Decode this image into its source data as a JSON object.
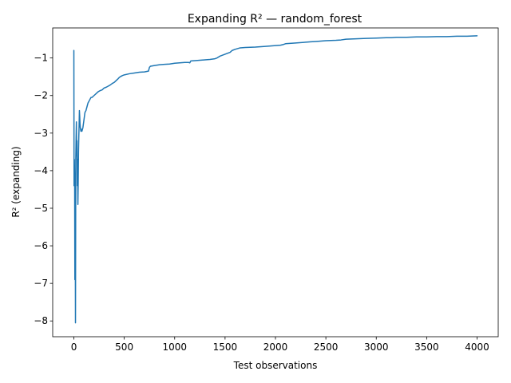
{
  "chart_data": {
    "type": "line",
    "title": "Expanding R² — random_forest",
    "xlabel": "Test observations",
    "ylabel": "R² (expanding)",
    "xlim": [
      -210,
      4210
    ],
    "ylim": [
      -8.42,
      -0.2
    ],
    "xticks": [
      0,
      500,
      1000,
      1500,
      2000,
      2500,
      3000,
      3500,
      4000
    ],
    "xtick_labels": [
      "0",
      "500",
      "1000",
      "1500",
      "2000",
      "2500",
      "3000",
      "3500",
      "4000"
    ],
    "yticks": [
      -1,
      -2,
      -3,
      -4,
      -5,
      -6,
      -7,
      -8
    ],
    "ytick_labels": [
      "−1",
      "−2",
      "−3",
      "−4",
      "−5",
      "−6",
      "−7",
      "−8"
    ],
    "grid": false,
    "series": [
      {
        "color": "#1f77b4",
        "x": [
          0,
          2,
          5,
          8,
          10,
          13,
          16,
          19,
          22,
          25,
          28,
          31,
          34,
          37,
          40,
          43,
          46,
          49,
          52,
          55,
          58,
          61,
          64,
          67,
          70,
          75,
          80,
          85,
          90,
          100,
          110,
          120,
          130,
          140,
          150,
          160,
          170,
          180,
          200,
          220,
          240,
          260,
          280,
          300,
          320,
          340,
          360,
          380,
          400,
          420,
          440,
          450,
          460,
          480,
          500,
          550,
          600,
          650,
          700,
          740,
          750,
          760,
          800,
          850,
          900,
          950,
          1000,
          1050,
          1100,
          1140,
          1150,
          1160,
          1200,
          1250,
          1300,
          1350,
          1400,
          1420,
          1450,
          1500,
          1550,
          1570,
          1600,
          1650,
          1700,
          1800,
          1900,
          1950,
          2000,
          2050,
          2080,
          2100,
          2200,
          2300,
          2350,
          2400,
          2500,
          2600,
          2650,
          2700,
          2800,
          2900,
          3000,
          3100,
          3150,
          3200,
          3300,
          3400,
          3500,
          3600,
          3700,
          3800,
          3900,
          4000
        ],
        "y": [
          -0.8,
          -4.4,
          -3.7,
          -4.3,
          -6.9,
          -4.3,
          -8.05,
          -3.7,
          -3.15,
          -2.7,
          -3.6,
          -3.2,
          -4.4,
          -3.7,
          -4.9,
          -4.3,
          -3.5,
          -3.1,
          -2.8,
          -2.4,
          -2.55,
          -2.75,
          -2.85,
          -2.9,
          -2.95,
          -2.9,
          -2.95,
          -2.9,
          -2.85,
          -2.65,
          -2.45,
          -2.4,
          -2.3,
          -2.2,
          -2.15,
          -2.1,
          -2.05,
          -2.05,
          -2.0,
          -1.95,
          -1.9,
          -1.87,
          -1.85,
          -1.8,
          -1.78,
          -1.75,
          -1.72,
          -1.68,
          -1.65,
          -1.6,
          -1.55,
          -1.52,
          -1.5,
          -1.47,
          -1.45,
          -1.42,
          -1.4,
          -1.38,
          -1.37,
          -1.35,
          -1.25,
          -1.22,
          -1.2,
          -1.18,
          -1.17,
          -1.16,
          -1.14,
          -1.13,
          -1.12,
          -1.12,
          -1.13,
          -1.08,
          -1.07,
          -1.06,
          -1.05,
          -1.04,
          -1.02,
          -1.0,
          -0.95,
          -0.9,
          -0.85,
          -0.8,
          -0.77,
          -0.73,
          -0.72,
          -0.71,
          -0.69,
          -0.68,
          -0.67,
          -0.66,
          -0.64,
          -0.62,
          -0.6,
          -0.58,
          -0.57,
          -0.56,
          -0.54,
          -0.53,
          -0.52,
          -0.5,
          -0.49,
          -0.48,
          -0.47,
          -0.46,
          -0.46,
          -0.45,
          -0.45,
          -0.44,
          -0.44,
          -0.43,
          -0.43,
          -0.42,
          -0.42,
          -0.41
        ]
      }
    ]
  }
}
